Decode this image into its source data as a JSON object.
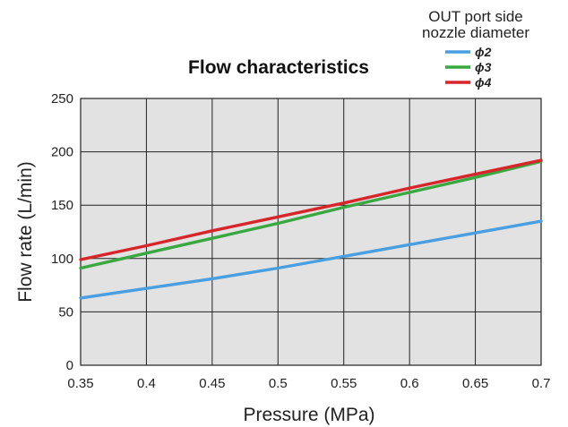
{
  "chart_data": {
    "type": "line",
    "title": "Flow characteristics",
    "xlabel": "Pressure (MPa)",
    "ylabel": "Flow rate (L/min)",
    "xlim": [
      0.35,
      0.7
    ],
    "ylim": [
      0,
      250
    ],
    "x_ticks": [
      "0.35",
      "0.4",
      "0.45",
      "0.5",
      "0.55",
      "0.6",
      "0.65",
      "0.7"
    ],
    "y_ticks": [
      "0",
      "50",
      "100",
      "150",
      "200",
      "250"
    ],
    "grid": true,
    "legend": {
      "title_line1": "OUT port side",
      "title_line2": "nozzle diameter",
      "placement": "top-right, above plot"
    },
    "x": [
      0.35,
      0.4,
      0.45,
      0.5,
      0.55,
      0.6,
      0.65,
      0.7
    ],
    "series": [
      {
        "name": "ϕ2",
        "color": "#4a9fe0",
        "values": [
          63,
          72,
          81,
          91,
          102,
          113,
          124,
          135
        ]
      },
      {
        "name": "ϕ3",
        "color": "#3aa840",
        "values": [
          91,
          105,
          119,
          133,
          148,
          162,
          176,
          191
        ]
      },
      {
        "name": "ϕ4",
        "color": "#d7262b",
        "values": [
          99,
          112,
          126,
          139,
          152,
          166,
          179,
          192
        ]
      }
    ]
  }
}
